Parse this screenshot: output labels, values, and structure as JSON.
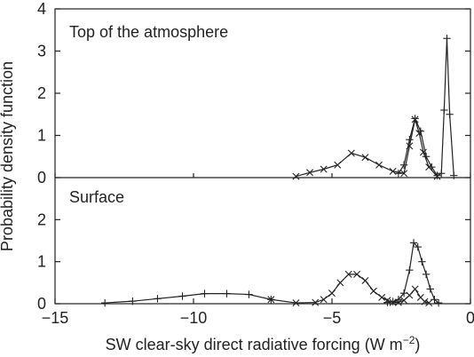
{
  "chart_data": {
    "type": "line",
    "xlabel_main": "SW clear-sky direct radiative forcing (W m",
    "xlabel_exp": "−2",
    "xlabel_close": ")",
    "ylabel": "Probability density function",
    "xlim": [
      -15,
      0
    ],
    "x_ticks": [
      "−15",
      "−10",
      "−5",
      "0"
    ],
    "x_tick_values": [
      -15,
      -10,
      -5,
      0
    ],
    "panels": [
      {
        "label": "Top of the atmosphere",
        "ylim": [
          0,
          4
        ],
        "y_ticks": [
          "0",
          "1",
          "2",
          "3",
          "4"
        ],
        "y_tick_values": [
          0,
          1,
          2,
          3,
          4
        ],
        "series": [
          {
            "marker": "x",
            "x": [
              -6.3,
              -5.8,
              -5.3,
              -4.8,
              -4.3,
              -3.8,
              -3.3,
              -2.8,
              -2.4,
              -2.2,
              -2.0,
              -1.85,
              -1.7,
              -1.5,
              -1.2
            ],
            "y": [
              0.03,
              0.12,
              0.2,
              0.3,
              0.58,
              0.48,
              0.3,
              0.15,
              0.1,
              0.75,
              1.38,
              1.05,
              0.6,
              0.25,
              0.03
            ]
          },
          {
            "marker": "+",
            "x": [
              -2.6,
              -2.4,
              -2.2,
              -2.0,
              -1.8,
              -1.6,
              -1.4,
              -1.2,
              -1.05,
              -0.95,
              -0.85,
              -0.75,
              -0.6
            ],
            "y": [
              0.1,
              0.3,
              0.9,
              1.4,
              1.1,
              0.5,
              0.25,
              0.05,
              0.1,
              1.6,
              3.3,
              1.5,
              0.05
            ]
          }
        ]
      },
      {
        "label": "Surface",
        "ylim": [
          0,
          3
        ],
        "y_ticks": [
          "0",
          "1",
          "2"
        ],
        "y_tick_values": [
          0,
          1,
          2
        ],
        "series": [
          {
            "marker": "+",
            "x": [
              -13.2,
              -12.2,
              -11.3,
              -10.4,
              -9.6,
              -8.8,
              -8.0,
              -7.2
            ],
            "y": [
              0.02,
              0.06,
              0.12,
              0.18,
              0.24,
              0.24,
              0.22,
              0.1
            ]
          },
          {
            "marker": "x",
            "x": [
              -7.2,
              -6.3,
              -5.6,
              -5.3,
              -5.0,
              -4.7,
              -4.4,
              -4.1,
              -3.8,
              -3.5,
              -3.2,
              -3.0,
              -2.8,
              -2.6,
              -2.4,
              -2.2,
              -2.0,
              -1.8,
              -1.65,
              -1.5
            ],
            "y": [
              0.1,
              0.02,
              0.03,
              0.1,
              0.25,
              0.5,
              0.7,
              0.7,
              0.55,
              0.3,
              0.15,
              0.08,
              0.03,
              0.03,
              0.08,
              0.2,
              0.35,
              0.15,
              0.05,
              0.02
            ]
          },
          {
            "marker": "+",
            "x": [
              -3.0,
              -2.8,
              -2.6,
              -2.4,
              -2.2,
              -2.05,
              -1.9,
              -1.75,
              -1.6,
              -1.45,
              -1.3,
              -1.15
            ],
            "y": [
              0.03,
              0.05,
              0.1,
              0.25,
              0.8,
              1.45,
              1.35,
              1.0,
              0.7,
              0.35,
              0.1,
              0.02
            ]
          }
        ]
      }
    ]
  }
}
